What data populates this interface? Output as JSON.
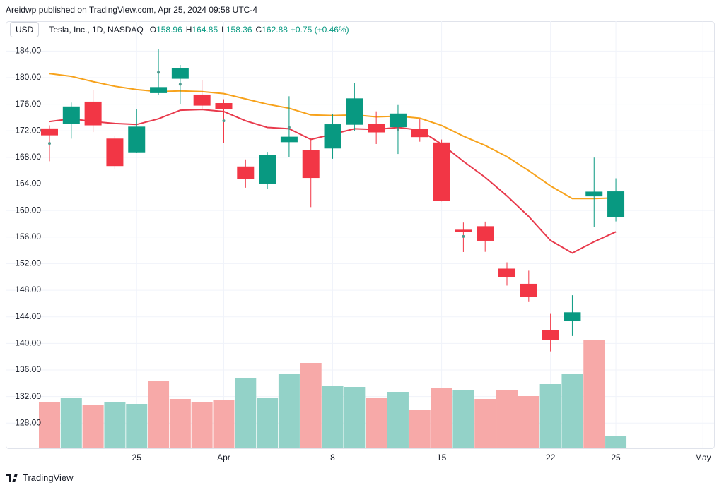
{
  "header": {
    "text": "Areidwp published on TradingView.com, Apr 25, 2024 09:58 UTC-4"
  },
  "footer": {
    "logo": "TradingView"
  },
  "chart_data": {
    "type": "candlestick",
    "currency": "USD",
    "title": "Tesla, Inc., 1D, NASDAQ",
    "legend": {
      "labels": [
        "O",
        "H",
        "L",
        "C"
      ],
      "change": "+0.75 (+0.46%)"
    },
    "categories": [
      null,
      null,
      null,
      null,
      "25",
      null,
      null,
      null,
      "Apr",
      null,
      null,
      null,
      null,
      "8",
      null,
      null,
      null,
      null,
      "15",
      null,
      null,
      null,
      null,
      "22",
      null,
      null,
      "25",
      null,
      null,
      null,
      "May"
    ],
    "open": [
      172.36,
      173.0,
      176.39,
      166.69,
      168.76,
      178.58,
      181.41,
      177.45,
      176.17,
      164.75,
      164.02,
      170.29,
      169.08,
      169.34,
      172.91,
      173.04,
      172.55,
      172.34,
      170.24,
      156.74,
      157.64,
      151.25,
      148.97,
      140.56,
      143.33,
      162.84,
      158.96,
      null,
      null,
      null,
      null
    ],
    "high": [
      172.82,
      176.25,
      178.18,
      171.2,
      175.24,
      184.25,
      181.91,
      179.57,
      176.75,
      167.69,
      168.82,
      177.2,
      170.86,
      174.5,
      179.22,
      174.93,
      175.88,
      173.81,
      170.69,
      158.19,
      158.33,
      152.2,
      150.94,
      144.44,
      147.25,
      167.97,
      164.85,
      null,
      null,
      null,
      null
    ],
    "low": [
      167.42,
      170.82,
      171.8,
      166.3,
      168.73,
      177.38,
      176.0,
      175.3,
      170.21,
      163.43,
      163.28,
      168.01,
      160.51,
      167.79,
      171.92,
      170.01,
      168.51,
      170.36,
      161.38,
      153.75,
      153.78,
      148.7,
      146.22,
      138.8,
      141.11,
      157.51,
      158.36,
      null,
      null,
      null,
      null
    ],
    "close": [
      171.32,
      175.66,
      172.82,
      170.83,
      172.63,
      177.67,
      179.83,
      175.79,
      175.22,
      166.63,
      168.38,
      171.11,
      164.9,
      172.98,
      176.88,
      171.76,
      174.6,
      171.05,
      161.48,
      157.11,
      155.45,
      149.93,
      147.05,
      142.05,
      144.68,
      162.13,
      162.88,
      null,
      null,
      null,
      null
    ],
    "up_color": "#089981",
    "down_color": "#f23645",
    "candle_color_rule": "previous_close",
    "markers": {
      "color": "#4f9a8f",
      "values": [
        170.1,
        null,
        null,
        null,
        null,
        180.8,
        179.0,
        null,
        173.5,
        null,
        null,
        172.5,
        null,
        null,
        null,
        null,
        172.2,
        null,
        null,
        156.1,
        null,
        null,
        null,
        null,
        null,
        null,
        null,
        null,
        null,
        null,
        null
      ]
    },
    "moving_averages": [
      {
        "color": "#f7a21b",
        "values": [
          180.6,
          180.2,
          179.4,
          178.7,
          178.2,
          177.9,
          178.0,
          177.9,
          177.6,
          176.8,
          176.0,
          175.4,
          174.4,
          174.3,
          174.4,
          174.1,
          174.2,
          173.9,
          172.8,
          171.2,
          169.8,
          168.1,
          166.0,
          163.7,
          161.8,
          161.8,
          161.9,
          null,
          null,
          null,
          null
        ]
      },
      {
        "color": "#e8394b",
        "values": [
          173.4,
          173.8,
          173.4,
          173.1,
          172.95,
          173.8,
          175.1,
          175.2,
          174.9,
          173.5,
          172.5,
          172.3,
          170.7,
          171.5,
          172.3,
          172.2,
          172.5,
          172.1,
          170.0,
          167.4,
          165.0,
          162.2,
          159.1,
          155.5,
          153.6,
          155.3,
          156.8,
          null,
          null,
          null,
          null
        ]
      }
    ],
    "volume": {
      "values": [
        66,
        71,
        62,
        65,
        63,
        96,
        70,
        66,
        69,
        99,
        71,
        105,
        121,
        89,
        87,
        72,
        80,
        55,
        85,
        83,
        70,
        82,
        74,
        91,
        106,
        153,
        18,
        null,
        null,
        null,
        null
      ],
      "up_color": "#93d2c8",
      "down_color": "#f7a9a8",
      "ylim": [
        0,
        160
      ]
    },
    "ylim": [
      124.2,
      188.5
    ],
    "yticks": [
      {
        "value": 128,
        "label": "128.00"
      },
      {
        "value": 132,
        "label": "132.00"
      },
      {
        "value": 136,
        "label": "136.00"
      },
      {
        "value": 140,
        "label": "140.00"
      },
      {
        "value": 144,
        "label": "144.00"
      },
      {
        "value": 148,
        "label": "148.00"
      },
      {
        "value": 152,
        "label": "152.00"
      },
      {
        "value": 156,
        "label": "156.00"
      },
      {
        "value": 160,
        "label": "160.00"
      },
      {
        "value": 164,
        "label": "164.00"
      },
      {
        "value": 168,
        "label": "168.00"
      },
      {
        "value": 172,
        "label": "172.00"
      },
      {
        "value": 176,
        "label": "176.00"
      },
      {
        "value": 180,
        "label": "180.00"
      },
      {
        "value": 184,
        "label": "184.00"
      }
    ],
    "grid": true
  }
}
